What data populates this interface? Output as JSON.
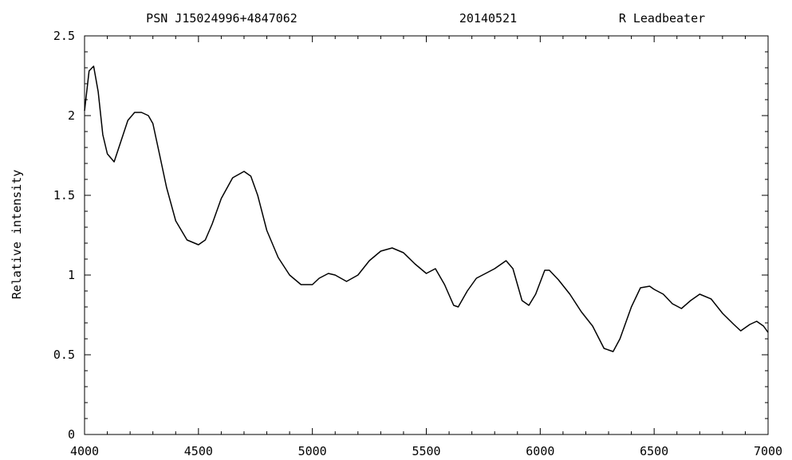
{
  "chart_data": {
    "type": "line",
    "title_parts": [
      "PSN J15024996+4847062",
      "20140521",
      "R Leadbeater"
    ],
    "xlabel": "",
    "ylabel": "Relative intensity",
    "xlim": [
      4000,
      7000
    ],
    "ylim": [
      0,
      2.5
    ],
    "x_ticks": [
      "4000",
      "4500",
      "5000",
      "5500",
      "6000",
      "6500",
      "7000"
    ],
    "y_ticks": [
      "0",
      "0.5",
      "1",
      "1.5",
      "2",
      "2.5"
    ],
    "grid": false,
    "series": [
      {
        "x": [
          4000,
          4020,
          4040,
          4060,
          4080,
          4100,
          4130,
          4160,
          4190,
          4220,
          4250,
          4280,
          4300,
          4330,
          4360,
          4400,
          4450,
          4500,
          4530,
          4560,
          4600,
          4650,
          4700,
          4730,
          4760,
          4800,
          4850,
          4900,
          4950,
          5000,
          5030,
          5070,
          5100,
          5150,
          5200,
          5250,
          5300,
          5350,
          5400,
          5450,
          5500,
          5540,
          5580,
          5620,
          5640,
          5680,
          5720,
          5760,
          5800,
          5850,
          5880,
          5920,
          5950,
          5980,
          6020,
          6040,
          6080,
          6130,
          6180,
          6230,
          6280,
          6320,
          6350,
          6400,
          6440,
          6480,
          6500,
          6540,
          6580,
          6620,
          6660,
          6700,
          6750,
          6800,
          6850,
          6880,
          6920,
          6950,
          6980,
          7000
        ],
        "y": [
          2.03,
          2.28,
          2.31,
          2.15,
          1.88,
          1.76,
          1.71,
          1.84,
          1.97,
          2.02,
          2.02,
          2.0,
          1.95,
          1.75,
          1.55,
          1.34,
          1.22,
          1.19,
          1.22,
          1.32,
          1.48,
          1.61,
          1.65,
          1.62,
          1.5,
          1.28,
          1.11,
          1.0,
          0.94,
          0.94,
          0.98,
          1.01,
          1.0,
          0.96,
          1.0,
          1.09,
          1.15,
          1.17,
          1.14,
          1.07,
          1.01,
          1.04,
          0.94,
          0.81,
          0.8,
          0.9,
          0.98,
          1.01,
          1.04,
          1.09,
          1.04,
          0.84,
          0.81,
          0.88,
          1.03,
          1.03,
          0.97,
          0.88,
          0.77,
          0.68,
          0.54,
          0.52,
          0.6,
          0.8,
          0.92,
          0.93,
          0.91,
          0.88,
          0.82,
          0.79,
          0.84,
          0.88,
          0.85,
          0.76,
          0.69,
          0.65,
          0.69,
          0.71,
          0.68,
          0.64
        ]
      }
    ]
  }
}
